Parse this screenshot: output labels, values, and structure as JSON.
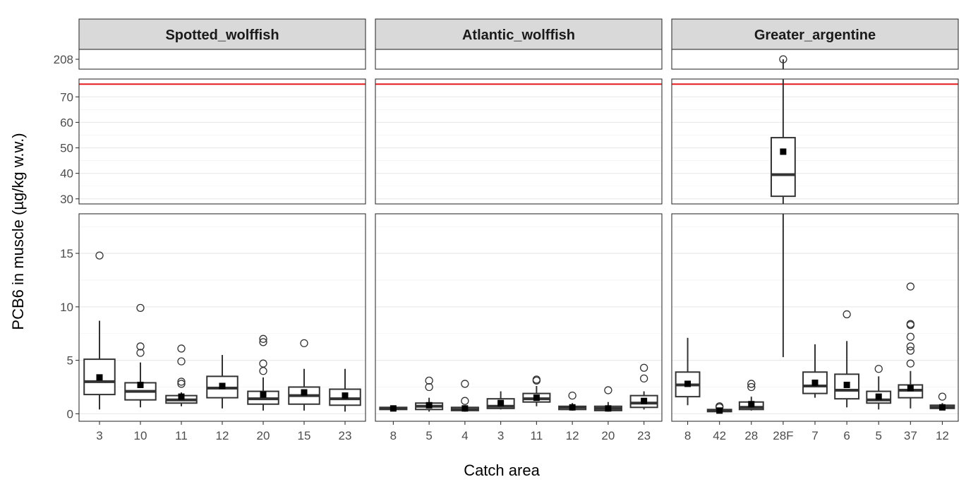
{
  "chart_data": {
    "type": "boxplot",
    "xlabel": "Catch area",
    "ylabel": "PCB6 in muscle (µg/kg w.w.)",
    "reference_line": {
      "value": 75,
      "color": "#e41a1c"
    },
    "y_bands": [
      {
        "name": "top",
        "ylim": [
          207,
          209
        ],
        "ticks": [
          208
        ]
      },
      {
        "name": "middle",
        "ylim": [
          28,
          77
        ],
        "ticks": [
          30,
          40,
          50,
          60,
          70
        ]
      },
      {
        "name": "bottom",
        "ylim": [
          -0.7,
          18.7
        ],
        "ticks": [
          0,
          5,
          10,
          15
        ]
      }
    ],
    "panels": [
      {
        "title": "Spotted_wolffish",
        "categories": [
          "3",
          "10",
          "11",
          "12",
          "20",
          "15",
          "23"
        ],
        "boxes": [
          {
            "category": "3",
            "low": 0.4,
            "q1": 1.8,
            "median": 3.0,
            "q3": 5.1,
            "high": 8.7,
            "mean": 3.4,
            "outliers": [
              14.8
            ]
          },
          {
            "category": "10",
            "low": 0.6,
            "q1": 1.3,
            "median": 2.1,
            "q3": 2.9,
            "high": 4.8,
            "mean": 2.7,
            "outliers": [
              5.7,
              6.3,
              9.9
            ]
          },
          {
            "category": "11",
            "low": 0.7,
            "q1": 1.0,
            "median": 1.3,
            "q3": 1.7,
            "high": 2.0,
            "mean": 1.6,
            "outliers": [
              2.8,
              3.0,
              4.9,
              6.1
            ]
          },
          {
            "category": "12",
            "low": 0.5,
            "q1": 1.5,
            "median": 2.4,
            "q3": 3.5,
            "high": 5.5,
            "mean": 2.6,
            "outliers": []
          },
          {
            "category": "20",
            "low": 0.3,
            "q1": 0.9,
            "median": 1.4,
            "q3": 2.1,
            "high": 3.4,
            "mean": 1.8,
            "outliers": [
              4.0,
              4.7,
              6.7,
              7.0
            ]
          },
          {
            "category": "15",
            "low": 0.3,
            "q1": 0.9,
            "median": 1.7,
            "q3": 2.5,
            "high": 4.2,
            "mean": 2.0,
            "outliers": [
              6.6
            ]
          },
          {
            "category": "23",
            "low": 0.2,
            "q1": 0.8,
            "median": 1.4,
            "q3": 2.3,
            "high": 4.2,
            "mean": 1.7,
            "outliers": []
          }
        ]
      },
      {
        "title": "Atlantic_wolffish",
        "categories": [
          "8",
          "5",
          "4",
          "3",
          "11",
          "12",
          "20",
          "23"
        ],
        "boxes": [
          {
            "category": "8",
            "low": 0.3,
            "q1": 0.4,
            "median": 0.5,
            "q3": 0.6,
            "high": 0.7,
            "mean": 0.5,
            "outliers": []
          },
          {
            "category": "5",
            "low": 0.2,
            "q1": 0.4,
            "median": 0.7,
            "q3": 1.0,
            "high": 1.5,
            "mean": 0.8,
            "outliers": [
              2.5,
              3.1
            ]
          },
          {
            "category": "4",
            "low": 0.2,
            "q1": 0.3,
            "median": 0.4,
            "q3": 0.6,
            "high": 0.8,
            "mean": 0.5,
            "outliers": [
              1.2,
              2.8
            ]
          },
          {
            "category": "3",
            "low": 0.4,
            "q1": 0.5,
            "median": 0.7,
            "q3": 1.4,
            "high": 2.1,
            "mean": 1.0,
            "outliers": []
          },
          {
            "category": "11",
            "low": 0.7,
            "q1": 1.1,
            "median": 1.4,
            "q3": 1.9,
            "high": 2.6,
            "mean": 1.5,
            "outliers": [
              3.1,
              3.2
            ]
          },
          {
            "category": "12",
            "low": 0.3,
            "q1": 0.4,
            "median": 0.6,
            "q3": 0.7,
            "high": 1.0,
            "mean": 0.6,
            "outliers": [
              1.7
            ]
          },
          {
            "category": "20",
            "low": 0.2,
            "q1": 0.3,
            "median": 0.5,
            "q3": 0.7,
            "high": 1.1,
            "mean": 0.5,
            "outliers": [
              2.2
            ]
          },
          {
            "category": "23",
            "low": 0.4,
            "q1": 0.6,
            "median": 1.0,
            "q3": 1.7,
            "high": 2.1,
            "mean": 1.2,
            "outliers": [
              3.3,
              4.3
            ]
          }
        ]
      },
      {
        "title": "Greater_argentine",
        "categories": [
          "8",
          "42",
          "28",
          "28F",
          "7",
          "6",
          "5",
          "37",
          "12"
        ],
        "boxes": [
          {
            "category": "8",
            "low": 0.8,
            "q1": 1.6,
            "median": 2.7,
            "q3": 3.9,
            "high": 7.1,
            "mean": 2.8,
            "outliers": []
          },
          {
            "category": "42",
            "low": 0.1,
            "q1": 0.2,
            "median": 0.3,
            "q3": 0.4,
            "high": 0.5,
            "mean": 0.3,
            "outliers": [
              0.6,
              0.7
            ]
          },
          {
            "category": "28",
            "low": 0.3,
            "q1": 0.4,
            "median": 0.6,
            "q3": 1.1,
            "high": 1.6,
            "mean": 0.9,
            "outliers": [
              2.5,
              2.8
            ]
          },
          {
            "category": "28F",
            "low": 5.3,
            "q1": 31.0,
            "median": 39.5,
            "q3": 54.0,
            "high": 208,
            "mean": 48.5,
            "outliers": [
              208
            ]
          },
          {
            "category": "7",
            "low": 1.5,
            "q1": 1.9,
            "median": 2.6,
            "q3": 3.9,
            "high": 6.5,
            "mean": 2.9,
            "outliers": []
          },
          {
            "category": "6",
            "low": 0.6,
            "q1": 1.4,
            "median": 2.2,
            "q3": 3.7,
            "high": 6.8,
            "mean": 2.7,
            "outliers": [
              9.3
            ]
          },
          {
            "category": "5",
            "low": 0.4,
            "q1": 1.0,
            "median": 1.3,
            "q3": 2.1,
            "high": 3.5,
            "mean": 1.6,
            "outliers": [
              4.2
            ]
          },
          {
            "category": "37",
            "low": 0.5,
            "q1": 1.5,
            "median": 2.2,
            "q3": 2.7,
            "high": 4.0,
            "mean": 2.4,
            "outliers": [
              4.7,
              5.9,
              6.3,
              7.2,
              8.3,
              8.4,
              11.9
            ]
          },
          {
            "category": "12",
            "low": 0.4,
            "q1": 0.5,
            "median": 0.6,
            "q3": 0.8,
            "high": 1.0,
            "mean": 0.6,
            "outliers": [
              1.6
            ]
          }
        ]
      }
    ]
  }
}
